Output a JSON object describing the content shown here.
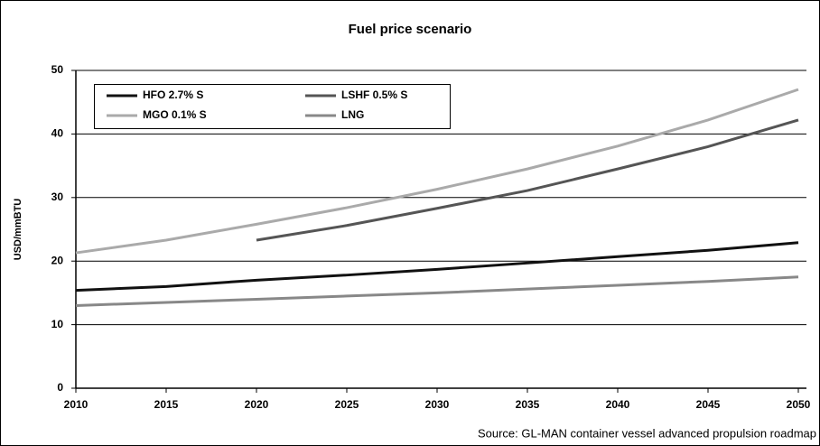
{
  "chart_data": {
    "type": "line",
    "title": "Fuel price scenario",
    "y_label": "USD/mmBTU",
    "source": "Source: GL-MAN container vessel advanced propulsion roadmap",
    "x": [
      2010,
      2015,
      2020,
      2025,
      2030,
      2035,
      2040,
      2045,
      2050
    ],
    "xlim": [
      2010,
      2050
    ],
    "xticks": [
      2010,
      2015,
      2020,
      2025,
      2030,
      2035,
      2040,
      2045,
      2050
    ],
    "ylim": [
      0,
      50
    ],
    "yticks": [
      0,
      10,
      20,
      30,
      40,
      50
    ],
    "grid": true,
    "legend": "upper left",
    "series": [
      {
        "name": "HFO 2.7% S",
        "color": "#111111",
        "values": [
          15.4,
          16.0,
          17.0,
          17.8,
          18.7,
          19.7,
          20.7,
          21.7,
          22.9
        ]
      },
      {
        "name": "LSHF 0.5% S",
        "color": "#555555",
        "values": [
          null,
          null,
          23.3,
          25.6,
          28.3,
          31.1,
          34.5,
          38.0,
          42.2
        ]
      },
      {
        "name": "MGO 0.1% S",
        "color": "#aaaaaa",
        "values": [
          21.3,
          23.3,
          25.8,
          28.4,
          31.3,
          34.5,
          38.1,
          42.2,
          47.0
        ]
      },
      {
        "name": "LNG",
        "color": "#888888",
        "values": [
          13.0,
          13.5,
          14.0,
          14.5,
          15.0,
          15.6,
          16.2,
          16.8,
          17.5
        ]
      }
    ]
  }
}
